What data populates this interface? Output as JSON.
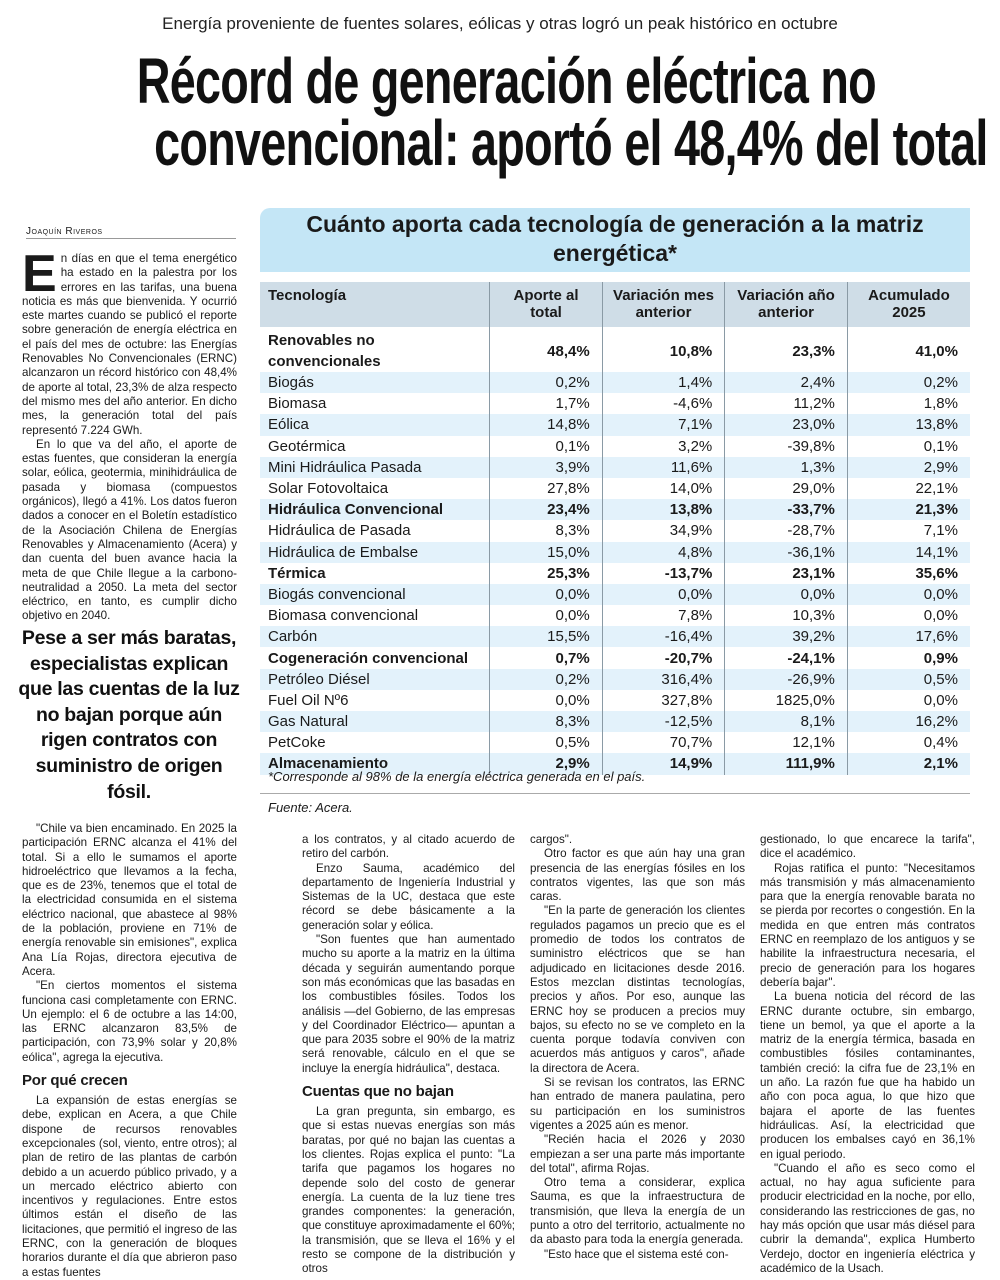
{
  "kicker": "Energía proveniente de fuentes solares, eólicas y otras logró un peak histórico en octubre",
  "headline": [
    "Récord de generación eléctrica no",
    "convencional: aportó el 48,4% del total"
  ],
  "byline": "Joaquín Riveros",
  "article": {
    "col1_top": [
      {
        "dropcap": "E",
        "text": "n días en que el tema energético ha estado en la palestra por los errores en las tarifas, una buena noticia es más que bienvenida. Y ocurrió este martes cuando se publicó el reporte sobre generación de energía eléctrica en el país del mes de octubre: las Energías Renovables No Convencionales (ERNC) alcanzaron un récord histórico con 48,4% de aporte al total, 23,3% de alza respecto del mismo mes del año anterior. En dicho mes, la generación total del país representó 7.224 GWh."
      },
      {
        "text": "En lo que va del año, el aporte de estas fuentes, que consideran la energía solar, eólica, geotermia, minihidráulica de pasada y biomasa (compuestos orgánicos), llegó a 41%. Los datos fueron dados a conocer en el Boletín estadístico de la Asociación Chilena de Energías Renovables y Almacenamiento (Acera) y dan cuenta del buen avance hacia la meta de que Chile llegue a la carbono-neutralidad a 2050. La meta del sector eléctrico, en tanto, es cumplir dicho objetivo en 2040."
      }
    ],
    "pull_quote": "Pese a ser más baratas, especialistas explican que las cuentas de la luz no bajan porque aún rigen contratos con suministro de origen fósil.",
    "col1_bottom": [
      "\"Chile va bien encaminado. En 2025 la participación ERNC alcanza el 41% del total. Si a ello le sumamos el aporte hidroeléctrico que llevamos a la fecha, que es de 23%, tenemos que el total de la electricidad consumida en el sistema eléctrico nacional, que abastece al 98% de la población, proviene en 71% de energía renovable sin emisiones\", explica Ana Lía Rojas, directora ejecutiva de Acera.",
      "\"En ciertos momentos el sistema funciona casi completamente con ERNC. Un ejemplo: el 6 de octubre a las 14:00, las ERNC alcanzaron 83,5% de participación, con 73,9% solar y 20,8% eólica\", agrega la ejecutiva."
    ],
    "subhead_1": "Por qué crecen",
    "col1_after_subhead": "La expansión de estas energías se debe, explican en Acera, a que Chile dispone de recursos renovables excepcionales (sol, viento, entre otros); al plan de retiro de las plantas de carbón debido a un acuerdo público privado, y a un mercado eléctrico abierto con incentivos y regulaciones. Entre estos últimos están el diseño de las licitaciones, que permitió el ingreso de las ERNC, con la generación de bloques horarios durante el día que abrieron paso a estas fuentes",
    "col2": [
      "a los contratos, y al citado acuerdo de retiro del carbón.",
      "Enzo Sauma, académico del departamento de Ingeniería Industrial y Sistemas de la UC, destaca que este récord se debe básicamente a la generación solar y eólica.",
      "\"Son fuentes que han aumentado mucho su aporte a la matriz en la última década y seguirán aumentando porque son más económicas que las basadas en los combustibles fósiles. Todos los análisis —del Gobierno, de las empresas y del Coordinador Eléctrico— apuntan a que para 2035 sobre el 90% de la matriz será renovable, cálculo en el que se incluye la energía hidráulica\", destaca."
    ],
    "subhead_2": "Cuentas que no bajan",
    "col2_after_subhead": "La gran pregunta, sin embargo, es que si estas nuevas energías son más baratas, por qué no bajan las cuentas a los clientes. Rojas explica el punto: \"La tarifa que pagamos los hogares no depende solo del costo de generar energía. La cuenta de la luz tiene tres grandes componentes: la generación, que constituye aproximadamente el 60%; la transmisión, que se lleva el 16% y el resto se compone de la distribución y otros",
    "col3": [
      "cargos\".",
      "Otro factor es que aún hay una gran presencia de las energías fósiles en los contratos vigentes, las que son más caras.",
      "\"En la parte de generación los clientes regulados pagamos un precio que es el promedio de todos los contratos de suministro eléctricos que se han adjudicado en licitaciones desde 2016. Estos mezclan distintas tecnologías, precios y años. Por eso, aunque las ERNC hoy se producen a precios muy bajos, su efecto no se ve completo en la cuenta porque todavía conviven con acuerdos más antiguos y caros\", añade la directora de Acera.",
      "Si se revisan los contratos, las ERNC han entrado de manera paulatina, pero su participación en los suministros vigentes a 2025 aún es menor.",
      "\"Recién hacia el 2026 y 2030 empiezan a ser una parte más importante del total\", afirma Rojas.",
      "Otro tema a considerar, explica Sauma, es que la infraestructura de transmisión, que lleva la energía de un punto a otro del territorio, actualmente no da abasto para toda la energía generada.",
      "\"Esto hace que el sistema esté con-"
    ],
    "col4": [
      "gestionado, lo que encarece la tarifa\", dice el académico.",
      "Rojas ratifica el punto: \"Necesitamos más transmisión y más almacenamiento para que la energía renovable barata no se pierda por recortes o congestión. En la medida en que entren más contratos ERNC en reemplazo de los antiguos y se habilite la infraestructura necesaria, el precio de generación para los hogares debería bajar\".",
      "La buena noticia del récord de las ERNC durante octubre, sin embargo, tiene un bemol, ya que el aporte a la matriz de la energía térmica, basada en combustibles fósiles contaminantes, también creció: la cifra fue de 23,1% en un año. La razón fue que ha habido un año con poca agua, lo que hizo que bajara el aporte de las fuentes hidráulicas. Así, la electricidad que producen los embalses cayó en 36,1% en igual periodo.",
      "\"Cuando el año es seco como el actual, no hay agua suficiente para producir electricidad en la noche, por ello, considerando las restricciones de gas, no hay más opción que usar más diésel para cubrir la demanda\", explica Humberto Verdejo, doctor en ingeniería eléctrica y académico de la Usach."
    ]
  },
  "table": {
    "title": "Cuánto aporta cada tecnología de generación a la matriz energética*",
    "headers": [
      "Tecnología",
      "Aporte al total",
      "Variación mes anterior",
      "Variación año anterior",
      "Acumulado 2025"
    ],
    "rows": [
      {
        "bold": true,
        "cells": [
          "Renovables no convencionales",
          "48,4%",
          "10,8%",
          "23,3%",
          "41,0%"
        ]
      },
      {
        "bold": false,
        "cells": [
          "Biogás",
          "0,2%",
          "1,4%",
          "2,4%",
          "0,2%"
        ]
      },
      {
        "bold": false,
        "cells": [
          "Biomasa",
          "1,7%",
          "-4,6%",
          "11,2%",
          "1,8%"
        ]
      },
      {
        "bold": false,
        "cells": [
          "Eólica",
          "14,8%",
          "7,1%",
          "23,0%",
          "13,8%"
        ]
      },
      {
        "bold": false,
        "cells": [
          "Geotérmica",
          "0,1%",
          "3,2%",
          "-39,8%",
          "0,1%"
        ]
      },
      {
        "bold": false,
        "cells": [
          "Mini Hidráulica Pasada",
          "3,9%",
          "11,6%",
          "1,3%",
          "2,9%"
        ]
      },
      {
        "bold": false,
        "cells": [
          "Solar Fotovoltaica",
          "27,8%",
          "14,0%",
          "29,0%",
          "22,1%"
        ]
      },
      {
        "bold": true,
        "cells": [
          "Hidráulica Convencional",
          "23,4%",
          "13,8%",
          "-33,7%",
          "21,3%"
        ]
      },
      {
        "bold": false,
        "cells": [
          "Hidráulica de Pasada",
          "8,3%",
          "34,9%",
          "-28,7%",
          "7,1%"
        ]
      },
      {
        "bold": false,
        "cells": [
          "Hidráulica de Embalse",
          "15,0%",
          "4,8%",
          "-36,1%",
          "14,1%"
        ]
      },
      {
        "bold": true,
        "cells": [
          "Térmica",
          "25,3%",
          "-13,7%",
          "23,1%",
          "35,6%"
        ]
      },
      {
        "bold": false,
        "cells": [
          "Biogás convencional",
          "0,0%",
          "0,0%",
          "0,0%",
          "0,0%"
        ]
      },
      {
        "bold": false,
        "cells": [
          "Biomasa convencional",
          "0,0%",
          "7,8%",
          "10,3%",
          "0,0%"
        ]
      },
      {
        "bold": false,
        "cells": [
          "Carbón",
          "15,5%",
          "-16,4%",
          "39,2%",
          "17,6%"
        ]
      },
      {
        "bold": true,
        "cells": [
          "Cogeneración convencional",
          "0,7%",
          "-20,7%",
          "-24,1%",
          "0,9%"
        ]
      },
      {
        "bold": false,
        "cells": [
          "Petróleo Diésel",
          "0,2%",
          "316,4%",
          "-26,9%",
          "0,5%"
        ]
      },
      {
        "bold": false,
        "cells": [
          "Fuel Oil Nº6",
          "0,0%",
          "327,8%",
          "1825,0%",
          "0,0%"
        ]
      },
      {
        "bold": false,
        "cells": [
          "Gas Natural",
          "8,3%",
          "-12,5%",
          "8,1%",
          "16,2%"
        ]
      },
      {
        "bold": false,
        "cells": [
          "PetCoke",
          "0,5%",
          "70,7%",
          "12,1%",
          "0,4%"
        ]
      },
      {
        "bold": true,
        "cells": [
          "Almacenamiento",
          "2,9%",
          "14,9%",
          "111,9%",
          "2,1%"
        ]
      }
    ],
    "footnote": "*Corresponde al 98% de la energía eléctrica generada en el país.",
    "source": "Fuente: Acera.",
    "colors": {
      "title_bg": "#c4e6f6",
      "header_bg": "#cfdde7",
      "alt_row_bg": "#e3f2fb"
    }
  }
}
